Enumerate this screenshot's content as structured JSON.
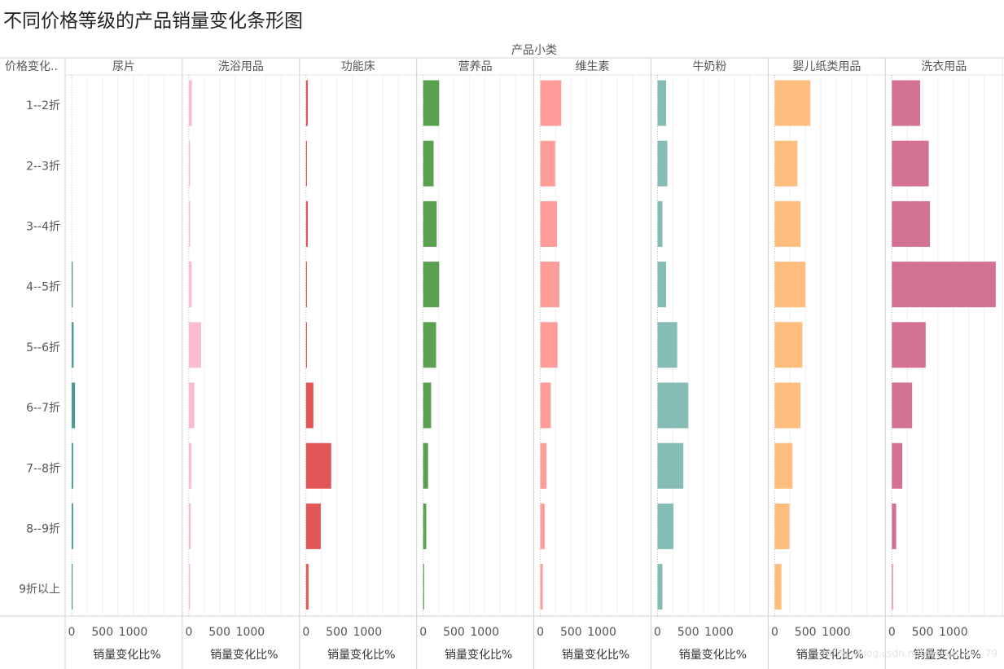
{
  "chart_data": {
    "type": "bar",
    "orientation": "horizontal",
    "title": "不同价格等级的产品销量变化条形图",
    "column_header": "产品小类",
    "row_header": "价格变化..",
    "xlabel": "销量变化比%",
    "xticks": [
      "0",
      "500",
      "1000"
    ],
    "xlim": [
      0,
      1700
    ],
    "grid": true,
    "categories": [
      "1--2折",
      "2--3折",
      "3--4折",
      "4--5折",
      "5--6折",
      "6--7折",
      "7--8折",
      "8--9折",
      "9折以上"
    ],
    "series": [
      {
        "name": "尿片",
        "color": "#4E9A96",
        "values": [
          0,
          0,
          0,
          18,
          32,
          55,
          25,
          25,
          15
        ]
      },
      {
        "name": "洗浴用品",
        "color": "#F9BCD3",
        "values": [
          50,
          20,
          20,
          45,
          200,
          90,
          40,
          30,
          20
        ]
      },
      {
        "name": "功能床",
        "color": "#E15759",
        "values": [
          30,
          15,
          30,
          15,
          15,
          120,
          410,
          240,
          40
        ]
      },
      {
        "name": "营养品",
        "color": "#59A14F",
        "values": [
          260,
          170,
          220,
          260,
          210,
          130,
          80,
          50,
          15
        ]
      },
      {
        "name": "维生素",
        "color": "#FF9D9A",
        "values": [
          340,
          240,
          270,
          310,
          280,
          170,
          100,
          70,
          40
        ]
      },
      {
        "name": "牛奶粉",
        "color": "#86BCB6",
        "values": [
          140,
          160,
          80,
          140,
          320,
          500,
          420,
          260,
          80
        ]
      },
      {
        "name": "婴儿纸类用品",
        "color": "#FFBE7D",
        "values": [
          580,
          370,
          420,
          500,
          450,
          420,
          290,
          240,
          110
        ]
      },
      {
        "name": "洗衣用品",
        "color": "#D37295",
        "values": [
          460,
          600,
          620,
          1690,
          550,
          330,
          170,
          70,
          15
        ]
      }
    ]
  },
  "watermark": "https://blog.csdn.net/weixin_45...79"
}
